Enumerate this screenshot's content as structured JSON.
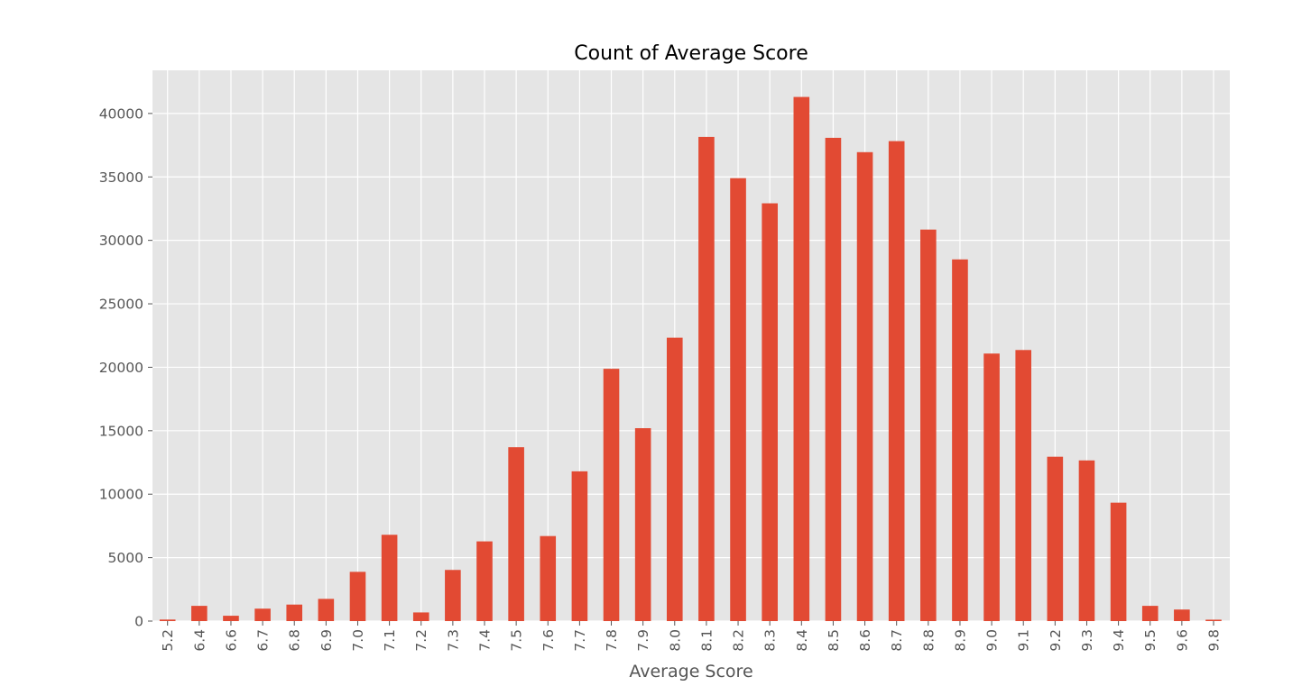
{
  "chart_data": {
    "type": "bar",
    "title": "Count of Average Score",
    "xlabel": "Average Score",
    "ylabel": "",
    "categories": [
      "5.2",
      "6.4",
      "6.6",
      "6.7",
      "6.8",
      "6.9",
      "7.0",
      "7.1",
      "7.2",
      "7.3",
      "7.4",
      "7.5",
      "7.6",
      "7.7",
      "7.8",
      "7.9",
      "8.0",
      "8.1",
      "8.2",
      "8.3",
      "8.4",
      "8.5",
      "8.6",
      "8.7",
      "8.8",
      "8.9",
      "9.0",
      "9.1",
      "9.2",
      "9.3",
      "9.4",
      "9.5",
      "9.6",
      "9.8"
    ],
    "values": [
      120,
      1200,
      420,
      980,
      1300,
      1750,
      3880,
      6800,
      680,
      4030,
      6280,
      13700,
      6700,
      11800,
      19880,
      15200,
      22330,
      38150,
      34900,
      32920,
      41300,
      38080,
      36950,
      37820,
      30850,
      28500,
      21080,
      21360,
      12950,
      12660,
      9330,
      1200,
      910,
      110
    ],
    "yticks": [
      0,
      5000,
      10000,
      15000,
      20000,
      25000,
      30000,
      35000,
      40000
    ],
    "ylim": [
      0,
      43400
    ],
    "grid": true,
    "bar_color": "#E24A33",
    "background_color": "#E5E5E5",
    "grid_color": "#FFFFFF"
  }
}
